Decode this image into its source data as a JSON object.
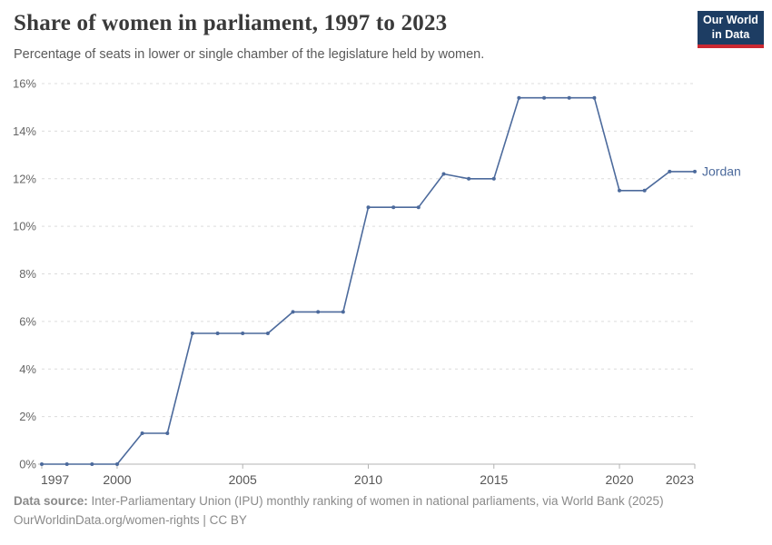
{
  "header": {
    "title": "Share of women in parliament, 1997 to 2023",
    "subtitle": "Percentage of seats in lower or single chamber of the legislature held by women."
  },
  "logo": {
    "line1": "Our World",
    "line2": "in Data",
    "bg_color": "#1d3d63",
    "accent_color": "#cb2831"
  },
  "footer": {
    "source_label": "Data source:",
    "source_text": " Inter-Parliamentary Union (IPU) monthly ranking of women in national parliaments, via World Bank (2025)",
    "note": "OurWorldinData.org/women-rights | CC BY"
  },
  "chart_data": {
    "type": "line",
    "title": "Share of women in parliament, 1997 to 2023",
    "subtitle": "Percentage of seats in lower or single chamber of the legislature held by women.",
    "x": [
      1997,
      1998,
      1999,
      2000,
      2001,
      2002,
      2003,
      2004,
      2005,
      2006,
      2007,
      2008,
      2009,
      2010,
      2011,
      2012,
      2013,
      2014,
      2015,
      2016,
      2017,
      2018,
      2019,
      2020,
      2021,
      2022,
      2023
    ],
    "series": [
      {
        "name": "Jordan",
        "values": [
          0,
          0,
          0,
          0,
          1.3,
          1.3,
          5.5,
          5.5,
          5.5,
          5.5,
          6.4,
          6.4,
          6.4,
          10.8,
          10.8,
          10.8,
          12.2,
          12.0,
          12.0,
          15.4,
          15.4,
          15.4,
          15.4,
          11.5,
          11.5,
          12.3,
          12.3
        ]
      }
    ],
    "xlim": [
      1997,
      2023
    ],
    "ylim": [
      0,
      16
    ],
    "xticks": [
      1997,
      2000,
      2005,
      2010,
      2015,
      2020,
      2023
    ],
    "yticks": [
      0,
      2,
      4,
      6,
      8,
      10,
      12,
      14,
      16
    ],
    "ytick_suffix": "%",
    "grid": "horizontal-dashed",
    "legend_position": "end-of-line-label",
    "line_color": "#4c6a9c",
    "grid_color": "#dcdcdc",
    "axis_color": "#b3b3b3",
    "ytick_label_color": "#666666",
    "xtick_label_color": "#565656"
  }
}
